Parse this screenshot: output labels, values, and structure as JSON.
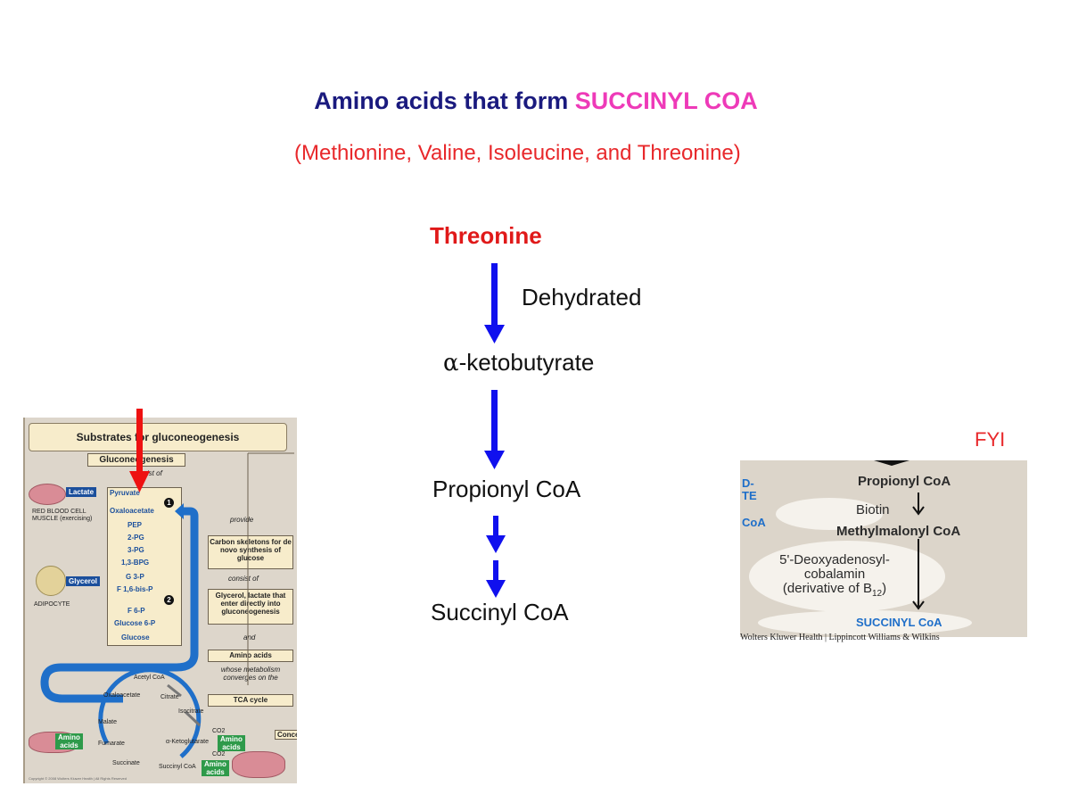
{
  "title": {
    "lead": "Amino acids that form ",
    "highlight": "SUCCINYL COA",
    "subtitle": "(Methionine, Valine, Isoleucine, and Threonine)"
  },
  "pathway": {
    "start": "Threonine",
    "step1_label": "Dehydrated",
    "intermediate1_symbol": "α",
    "intermediate1_rest": "-ketobutyrate",
    "intermediate2": "Propionyl CoA",
    "product": "Succinyl CoA"
  },
  "fyi": "FYI",
  "gluconeogenesis_figure": {
    "header": "Substrates for gluconeogenesis",
    "box_title": "Gluconeogenesis",
    "consists_of": "consist of",
    "lactate": "Lactate",
    "glycerol": "Glycerol",
    "rbc_label_1": "RED BLOOD CELL",
    "rbc_label_2": "MUSCLE (exercising)",
    "adipocyte": "ADIPOCYTE",
    "metabolites": [
      "Pyruvate",
      "Oxaloacetate",
      "PEP",
      "2-PG",
      "3-PG",
      "1,3-BPG",
      "G 3-P",
      "F 1,6-bis-P",
      "F 6-P",
      "Glucose 6-P",
      "Glucose"
    ],
    "step_markers": [
      "1",
      "2"
    ],
    "provide": "provide",
    "carbon_box": "Carbon skeletons for de novo synthesis of glucose",
    "consist_of": "consist of",
    "glycerol_box": "Glycerol, lactate that enter directly into gluconeogenesis",
    "and": "and",
    "amino_box": "Amino acids",
    "converges": "whose metabolism converges on the",
    "tca_box": "TCA cycle",
    "concept": "Conce",
    "tca_intermediates": {
      "acetyl_coa": "Acetyl CoA",
      "oxaloacetate": "Oxaloacetate",
      "citrate": "Citrate",
      "isocitrate": "Isocitrate",
      "malate": "Malate",
      "fumarate": "Fumarate",
      "akg": "α-Ketoglutarate",
      "succinate": "Succinate",
      "succinyl_coa": "Succinyl CoA",
      "co2": "CO2"
    },
    "amino_tag_1": "Amino",
    "amino_tag_2": "acids",
    "copyright": "Copyright © 2008 Wolters Kluwer Health | All Rights Reserved"
  },
  "methylmalonyl_figure": {
    "left_fragment_1": "D-",
    "left_fragment_2": "TE",
    "left_fragment_3": "CoA",
    "propionyl": "Propionyl CoA",
    "biotin": "Biotin",
    "methylmalonyl": "Methylmalonyl CoA",
    "cofactor_1": "5'-Deoxyadenosyl-",
    "cofactor_2": "cobalamin",
    "cofactor_3": "(derivative of B",
    "cofactor_sub": "12",
    "cofactor_close": ")",
    "product": "SUCCINYL CoA",
    "caption": "Wolters Kluwer Health | Lippincott Williams & Wilkins"
  },
  "colors": {
    "title_navy": "#1a1a7e",
    "highlight_pink": "#ee3ab8",
    "red": "#e01919",
    "arrow_blue": "#1010ee",
    "figure_blue": "#1b4f9c"
  }
}
